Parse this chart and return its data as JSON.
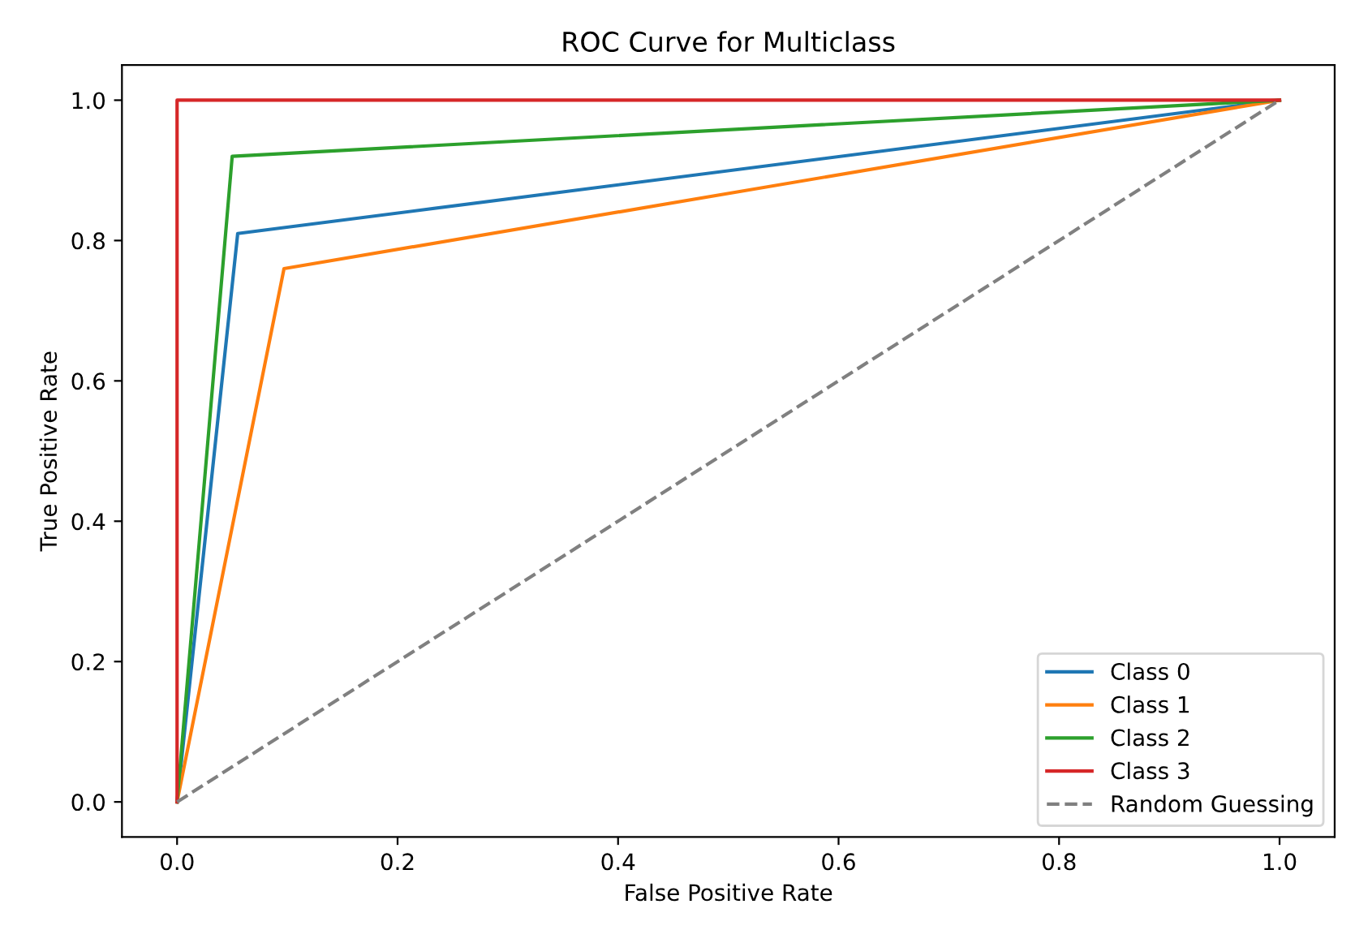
{
  "chart_data": {
    "type": "line",
    "title": "ROC Curve for Multiclass",
    "xlabel": "False Positive Rate",
    "ylabel": "True Positive Rate",
    "series": [
      {
        "name": "Class 0",
        "color": "#1f77b4",
        "x": [
          0,
          0.055,
          1
        ],
        "values": [
          0,
          0.81,
          1
        ]
      },
      {
        "name": "Class 1",
        "color": "#ff7f0e",
        "x": [
          0,
          0.097,
          1
        ],
        "values": [
          0,
          0.76,
          1
        ]
      },
      {
        "name": "Class 2",
        "color": "#2ca02c",
        "x": [
          0,
          0.05,
          1
        ],
        "values": [
          0,
          0.92,
          1
        ]
      },
      {
        "name": "Class 3",
        "color": "#d62728",
        "x": [
          0,
          0,
          1
        ],
        "values": [
          0,
          1,
          1
        ]
      },
      {
        "name": "Random Guessing",
        "color": "#808080",
        "x": [
          0,
          1
        ],
        "values": [
          0,
          1
        ],
        "line_style": "dashed"
      }
    ],
    "xlim": [
      -0.05,
      1.05
    ],
    "ylim": [
      -0.05,
      1.05
    ],
    "xticks": [
      {
        "value": 0,
        "label": "0.0"
      },
      0.2,
      0.4,
      0.6,
      0.8,
      {
        "value": 1,
        "label": "1.0"
      }
    ],
    "yticks": [
      {
        "value": 0,
        "label": "0.0"
      },
      0.2,
      0.4,
      0.6,
      0.8,
      {
        "value": 1,
        "label": "1.0"
      }
    ],
    "legend": "lower right",
    "grid": false
  }
}
